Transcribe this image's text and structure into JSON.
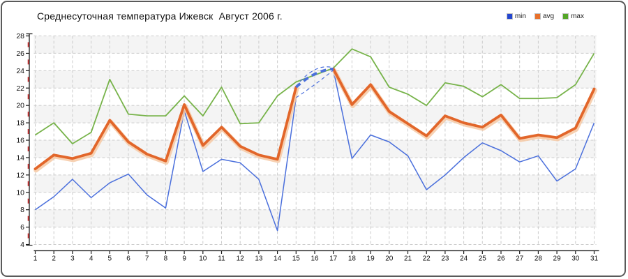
{
  "header": {
    "title": "Среднесуточная температура Ижевск  Август 2006 г."
  },
  "legend": {
    "items": [
      {
        "label": "min",
        "color": "#2446cf"
      },
      {
        "label": "avg",
        "color": "#e8702a"
      },
      {
        "label": "max",
        "color": "#54a627"
      }
    ]
  },
  "chart_data": {
    "type": "line",
    "title": "Среднесуточная температура Ижевск  Август 2006 г.",
    "xlabel": "",
    "ylabel": "",
    "x": [
      1,
      2,
      3,
      4,
      5,
      6,
      7,
      8,
      9,
      10,
      11,
      12,
      13,
      14,
      15,
      16,
      17,
      18,
      19,
      20,
      21,
      22,
      23,
      24,
      25,
      26,
      27,
      28,
      29,
      30,
      31
    ],
    "ylim": [
      4,
      28
    ],
    "yticks": [
      28,
      26,
      24,
      22,
      20,
      18,
      16,
      14,
      12,
      10,
      8,
      6,
      4
    ],
    "y_minor_ticks": [
      27,
      25,
      23,
      21,
      19,
      17,
      15,
      13,
      11,
      9,
      7,
      5
    ],
    "grid": true,
    "legend_position": "top-right",
    "series": [
      {
        "name": "min",
        "color": "#4a6fdc",
        "line_weight": "thin",
        "values": [
          8.0,
          9.5,
          11.5,
          9.4,
          11.1,
          12.1,
          9.7,
          8.2,
          19.4,
          12.4,
          13.8,
          13.4,
          11.5,
          5.6,
          20.9,
          null,
          24.1,
          13.9,
          16.6,
          15.8,
          14.2,
          10.3,
          12.0,
          14.0,
          15.7,
          14.8,
          13.5,
          14.2,
          11.3,
          12.7,
          18.0
        ]
      },
      {
        "name": "avg",
        "color": "#e2662a",
        "halo_color": "#f6c9a5",
        "line_weight": "thick",
        "values": [
          12.7,
          14.3,
          13.9,
          14.5,
          18.3,
          15.8,
          14.4,
          13.6,
          20.1,
          15.4,
          17.5,
          15.3,
          14.3,
          13.8,
          22.1,
          null,
          24.2,
          20.1,
          22.4,
          19.3,
          17.9,
          16.5,
          18.8,
          18.0,
          17.5,
          18.9,
          16.2,
          16.6,
          16.3,
          17.4,
          21.9
        ]
      },
      {
        "name": "max",
        "color": "#77b34a",
        "line_weight": "normal",
        "values": [
          16.6,
          18.0,
          15.6,
          16.9,
          23.0,
          19.0,
          18.8,
          18.8,
          21.1,
          18.8,
          22.1,
          17.9,
          18.0,
          21.1,
          22.7,
          23.5,
          24.3,
          26.5,
          25.6,
          22.1,
          21.3,
          20.0,
          22.6,
          22.2,
          21.0,
          22.4,
          20.8,
          20.8,
          20.9,
          22.4,
          26.0
        ]
      }
    ],
    "interpolated_gap": {
      "from_day": 15,
      "to_day": 17,
      "style": "dashed",
      "color": "#4a6fdc",
      "lines": [
        {
          "weight": "thick",
          "points": [
            [
              15,
              22.1
            ],
            [
              16,
              23.6
            ],
            [
              17,
              24.2
            ]
          ]
        },
        {
          "weight": "thin",
          "points": [
            [
              15,
              22.2
            ],
            [
              16,
              24.1
            ],
            [
              17,
              24.35
            ]
          ]
        },
        {
          "weight": "thin",
          "points": [
            [
              15,
              20.9
            ],
            [
              16,
              22.4
            ],
            [
              17,
              24.05
            ]
          ]
        }
      ]
    },
    "style_hints": {
      "band_fill": "#f4f4f4",
      "grid_color": "#cbcbcb",
      "axis_color": "#1a1a1a",
      "minor_tick_color": "#cc2a2a",
      "tick_label_color": "#111111"
    }
  }
}
